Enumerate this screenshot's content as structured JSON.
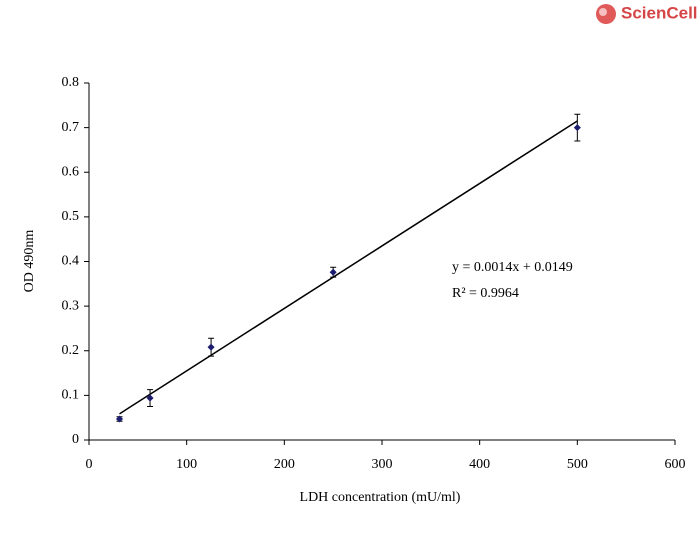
{
  "logo": "ScienCell",
  "chart_data": {
    "type": "scatter",
    "x_label": "LDH concentration (mU/ml)",
    "y_label": "OD 490nm",
    "x": [
      31.25,
      62.5,
      125,
      250,
      500
    ],
    "series": [
      {
        "color": "#1c1c6e",
        "values": [
          0.047,
          0.094,
          0.208,
          0.376,
          0.7
        ],
        "errors": [
          0.005,
          0.019,
          0.02,
          0.011,
          0.03
        ]
      }
    ],
    "trendline": {
      "slope": 0.0014,
      "intercept": 0.0149,
      "color": "#000000"
    },
    "annotations": [
      "y = 0.0014x + 0.0149",
      "R² = 0.9964"
    ],
    "xlim": [
      0,
      600
    ],
    "xticks": [
      0,
      100,
      200,
      300,
      400,
      500,
      600
    ],
    "ylim": [
      0,
      0.8
    ],
    "yticks": [
      0,
      0.1,
      0.2,
      0.3,
      0.4,
      0.5,
      0.6,
      0.7,
      0.8
    ]
  }
}
